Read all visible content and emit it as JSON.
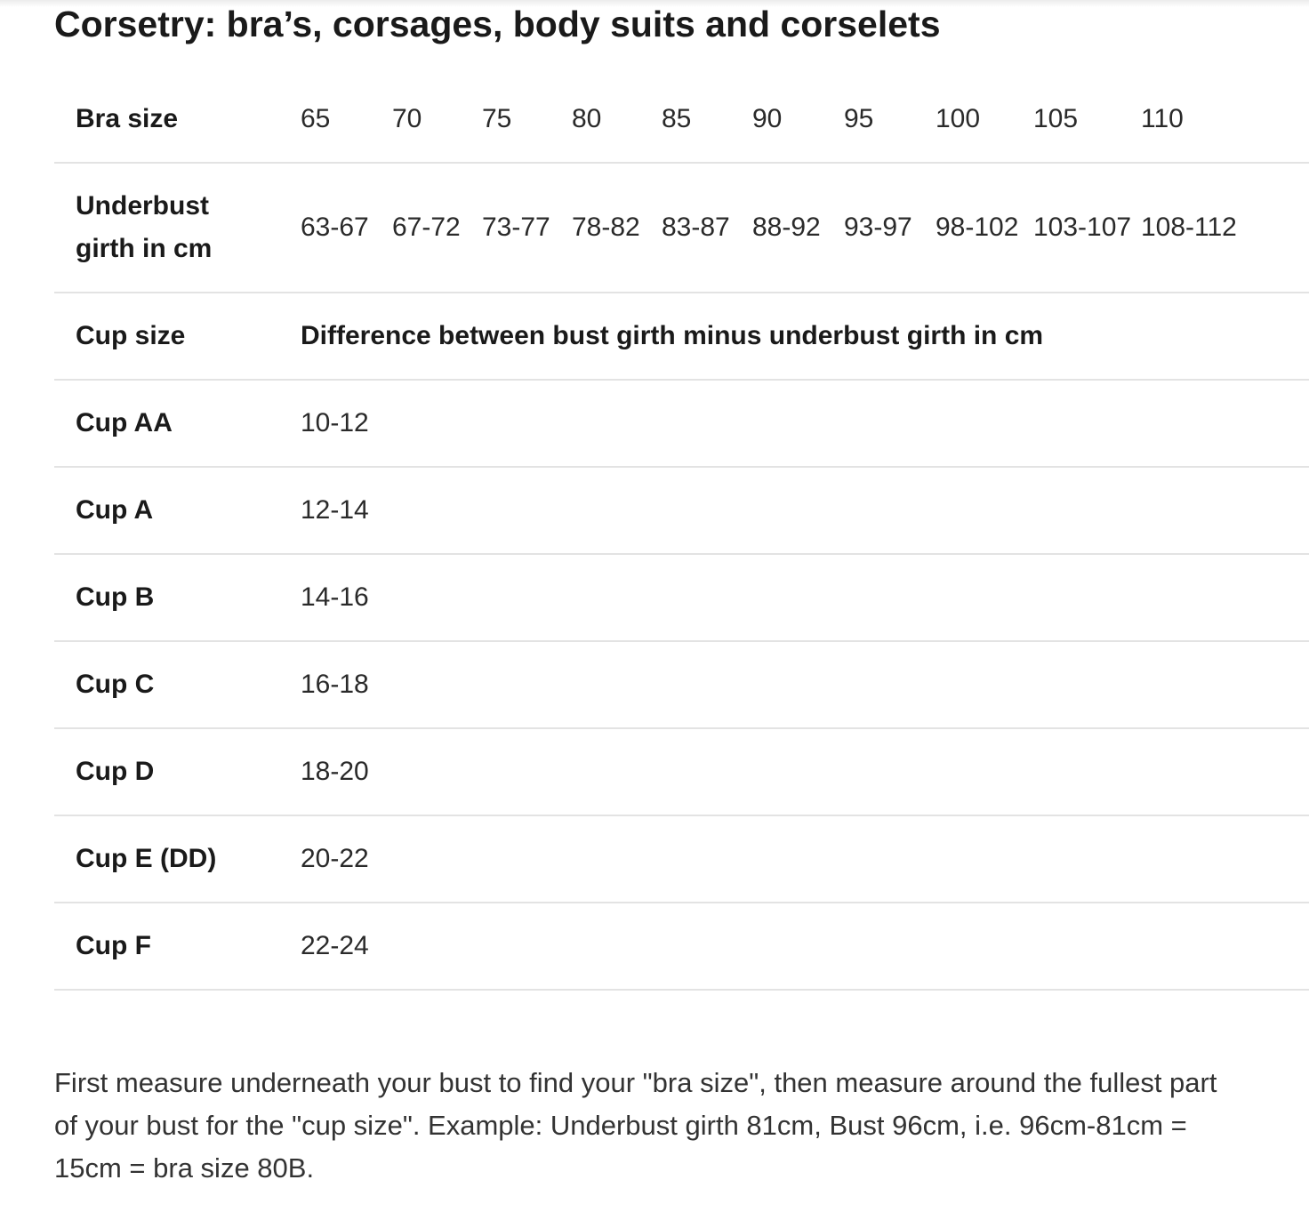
{
  "title": "Corsetry: bra’s, corsages, body suits and corselets",
  "table": {
    "bra_size_label": "Bra size",
    "bra_sizes": [
      "65",
      "70",
      "75",
      "80",
      "85",
      "90",
      "95",
      "100",
      "105",
      "110"
    ],
    "underbust_label": "Underbust girth in cm",
    "underbust_ranges": [
      "63-67",
      "67-72",
      "73-77",
      "78-82",
      "83-87",
      "88-92",
      "93-97",
      "98-102",
      "103-107",
      "108-112"
    ],
    "cup_size_label": "Cup size",
    "difference_label": "Difference between bust girth minus underbust girth in cm",
    "cups": [
      {
        "label": "Cup AA",
        "range": "10-12"
      },
      {
        "label": "Cup A",
        "range": "12-14"
      },
      {
        "label": "Cup B",
        "range": "14-16"
      },
      {
        "label": "Cup C",
        "range": "16-18"
      },
      {
        "label": "Cup D",
        "range": "18-20"
      },
      {
        "label": "Cup E (DD)",
        "range": "20-22"
      },
      {
        "label": "Cup F",
        "range": "22-24"
      }
    ]
  },
  "note": "First measure underneath your bust to find your \"bra size\", then measure around the fullest part of your bust for the \"cup size\". Example: Underbust girth 81cm, Bust 96cm, i.e. 96cm-81cm = 15cm = bra size 80B."
}
